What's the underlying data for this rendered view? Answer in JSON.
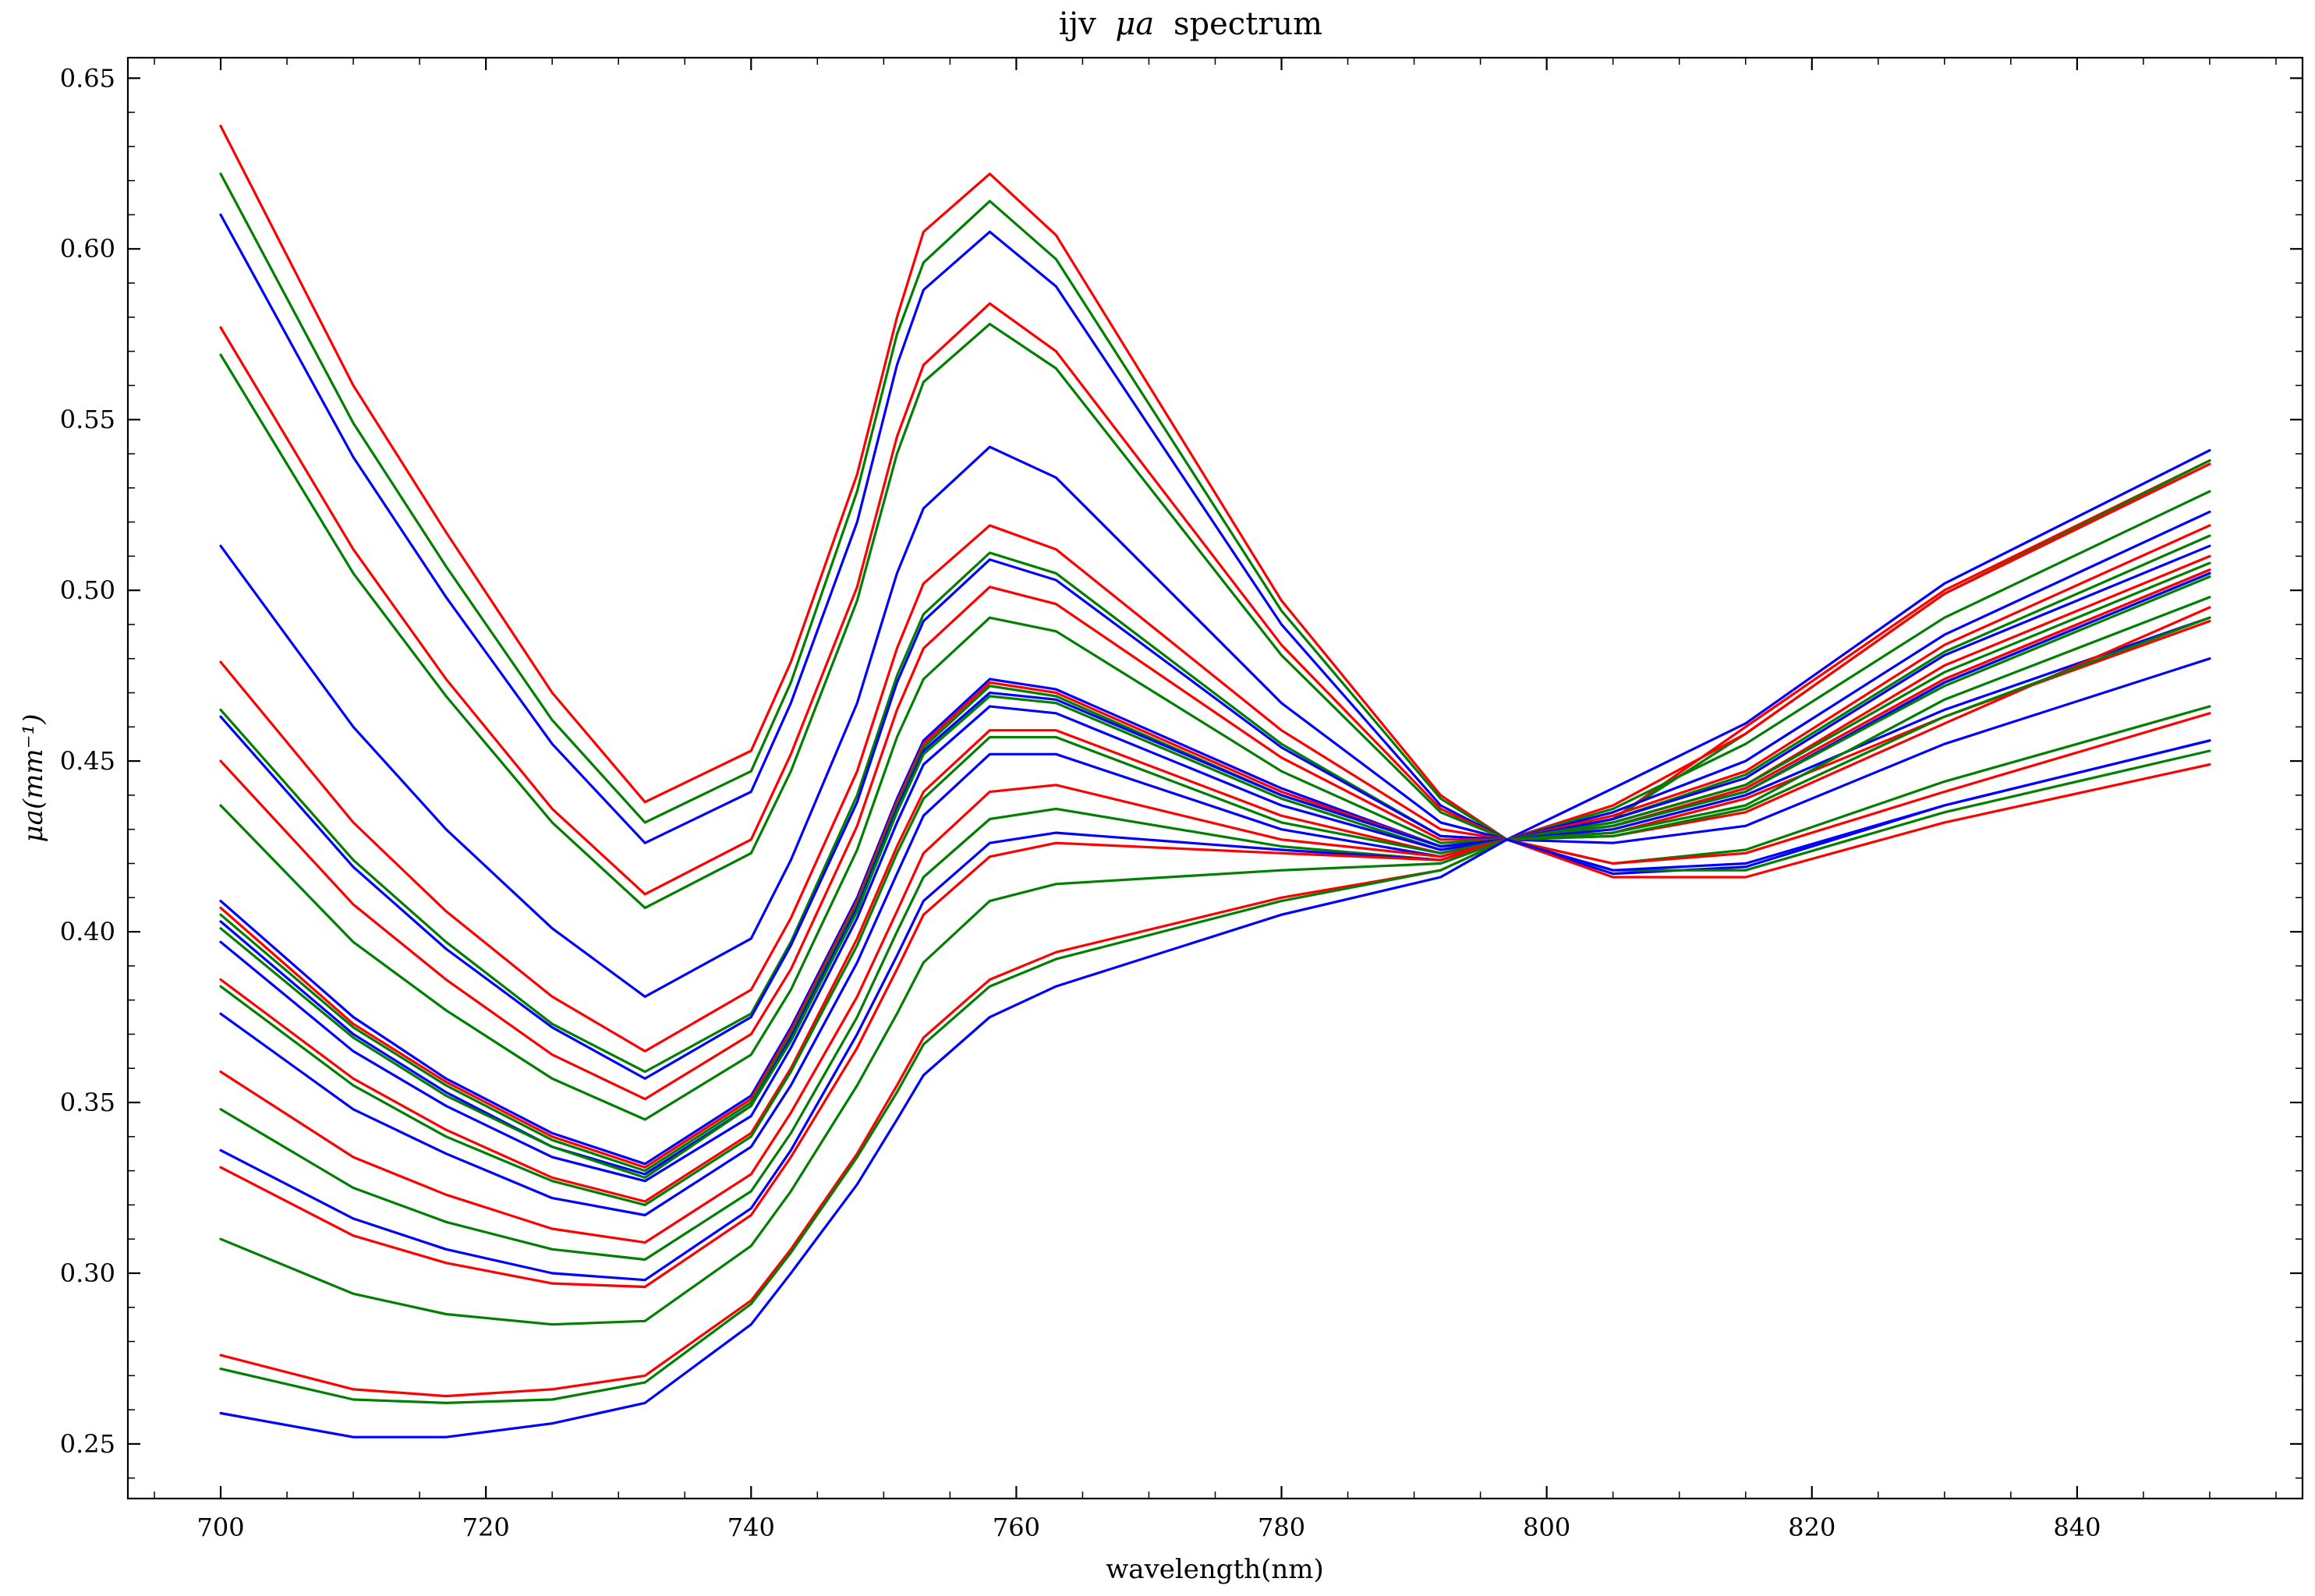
{
  "chart_data": {
    "type": "line",
    "title": "ijv",
    "title_symbol": "μa",
    "title_suffix": "spectrum",
    "xlabel": "wavelength(nm)",
    "ylabel": "μa(mm⁻¹)",
    "xlim": [
      693,
      857
    ],
    "ylim": [
      0.234,
      0.656
    ],
    "x": [
      700,
      710,
      717,
      725,
      732,
      740,
      743,
      748,
      751,
      753,
      758,
      763,
      780,
      792,
      797,
      805,
      815,
      830,
      850
    ],
    "xticks": [
      700,
      720,
      740,
      760,
      780,
      800,
      820,
      840
    ],
    "xtick_labels": [
      "700",
      "720",
      "740",
      "760",
      "780",
      "800",
      "820",
      "840"
    ],
    "yticks": [
      0.25,
      0.3,
      0.35,
      0.4,
      0.45,
      0.5,
      0.55,
      0.6,
      0.65
    ],
    "ytick_labels": [
      "0.25",
      "0.30",
      "0.35",
      "0.40",
      "0.45",
      "0.50",
      "0.55",
      "0.60",
      "0.65"
    ],
    "grid": false,
    "colors": {
      "red": "#ff0000",
      "green": "#007f00",
      "blue": "#0000ff"
    },
    "series": [
      {
        "color": "red",
        "values": [
          0.636,
          0.56,
          0.517,
          0.47,
          0.438,
          0.453,
          0.479,
          0.534,
          0.58,
          0.605,
          0.622,
          0.604,
          0.497,
          0.44,
          0.427,
          0.433,
          0.46,
          0.5,
          0.538
        ]
      },
      {
        "color": "green",
        "values": [
          0.622,
          0.549,
          0.507,
          0.462,
          0.432,
          0.447,
          0.473,
          0.529,
          0.575,
          0.596,
          0.614,
          0.597,
          0.494,
          0.439,
          0.427,
          0.433,
          0.458,
          0.499,
          0.538
        ]
      },
      {
        "color": "blue",
        "values": [
          0.61,
          0.539,
          0.498,
          0.455,
          0.426,
          0.441,
          0.467,
          0.52,
          0.566,
          0.588,
          0.605,
          0.589,
          0.49,
          0.437,
          0.427,
          0.442,
          0.461,
          0.502,
          0.541
        ]
      },
      {
        "color": "red",
        "values": [
          0.577,
          0.512,
          0.474,
          0.436,
          0.411,
          0.427,
          0.452,
          0.501,
          0.545,
          0.566,
          0.584,
          0.57,
          0.484,
          0.436,
          0.427,
          0.437,
          0.458,
          0.499,
          0.537
        ]
      },
      {
        "color": "green",
        "values": [
          0.569,
          0.505,
          0.469,
          0.432,
          0.407,
          0.423,
          0.447,
          0.497,
          0.54,
          0.561,
          0.578,
          0.565,
          0.481,
          0.435,
          0.427,
          0.436,
          0.455,
          0.492,
          0.529
        ]
      },
      {
        "color": "blue",
        "values": [
          0.513,
          0.46,
          0.43,
          0.401,
          0.381,
          0.398,
          0.421,
          0.467,
          0.505,
          0.524,
          0.542,
          0.533,
          0.467,
          0.432,
          0.427,
          0.435,
          0.45,
          0.487,
          0.523
        ]
      },
      {
        "color": "red",
        "values": [
          0.479,
          0.432,
          0.406,
          0.381,
          0.365,
          0.383,
          0.404,
          0.447,
          0.483,
          0.502,
          0.519,
          0.512,
          0.459,
          0.43,
          0.427,
          0.434,
          0.447,
          0.484,
          0.519
        ]
      },
      {
        "color": "green",
        "values": [
          0.465,
          0.421,
          0.397,
          0.373,
          0.359,
          0.376,
          0.397,
          0.44,
          0.475,
          0.493,
          0.511,
          0.505,
          0.455,
          0.428,
          0.427,
          0.433,
          0.446,
          0.482,
          0.516
        ]
      },
      {
        "color": "blue",
        "values": [
          0.463,
          0.419,
          0.395,
          0.372,
          0.357,
          0.375,
          0.396,
          0.438,
          0.473,
          0.491,
          0.509,
          0.503,
          0.454,
          0.428,
          0.427,
          0.433,
          0.445,
          0.481,
          0.513
        ]
      },
      {
        "color": "red",
        "values": [
          0.45,
          0.408,
          0.386,
          0.364,
          0.351,
          0.37,
          0.389,
          0.431,
          0.465,
          0.483,
          0.501,
          0.496,
          0.451,
          0.427,
          0.427,
          0.432,
          0.443,
          0.478,
          0.51
        ]
      },
      {
        "color": "green",
        "values": [
          0.437,
          0.397,
          0.377,
          0.357,
          0.345,
          0.364,
          0.383,
          0.424,
          0.457,
          0.474,
          0.492,
          0.488,
          0.447,
          0.426,
          0.427,
          0.432,
          0.443,
          0.476,
          0.508
        ]
      },
      {
        "color": "blue",
        "values": [
          0.409,
          0.375,
          0.357,
          0.341,
          0.332,
          0.352,
          0.372,
          0.41,
          0.439,
          0.456,
          0.474,
          0.471,
          0.442,
          0.425,
          0.427,
          0.431,
          0.442,
          0.474,
          0.506
        ]
      },
      {
        "color": "red",
        "values": [
          0.407,
          0.373,
          0.356,
          0.34,
          0.331,
          0.351,
          0.371,
          0.409,
          0.438,
          0.455,
          0.473,
          0.47,
          0.441,
          0.425,
          0.427,
          0.431,
          0.442,
          0.474,
          0.506
        ]
      },
      {
        "color": "green",
        "values": [
          0.405,
          0.372,
          0.355,
          0.339,
          0.33,
          0.35,
          0.37,
          0.408,
          0.437,
          0.454,
          0.472,
          0.469,
          0.44,
          0.425,
          0.427,
          0.431,
          0.441,
          0.473,
          0.505
        ]
      },
      {
        "color": "blue",
        "values": [
          0.403,
          0.37,
          0.353,
          0.337,
          0.329,
          0.349,
          0.369,
          0.407,
          0.436,
          0.453,
          0.47,
          0.468,
          0.44,
          0.425,
          0.427,
          0.431,
          0.441,
          0.473,
          0.505
        ]
      },
      {
        "color": "green",
        "values": [
          0.401,
          0.369,
          0.352,
          0.337,
          0.328,
          0.349,
          0.368,
          0.406,
          0.435,
          0.452,
          0.469,
          0.467,
          0.439,
          0.424,
          0.427,
          0.431,
          0.441,
          0.472,
          0.504
        ]
      },
      {
        "color": "blue",
        "values": [
          0.397,
          0.365,
          0.349,
          0.334,
          0.327,
          0.346,
          0.366,
          0.404,
          0.432,
          0.449,
          0.466,
          0.464,
          0.437,
          0.424,
          0.427,
          0.43,
          0.44,
          0.465,
          0.492
        ]
      },
      {
        "color": "red",
        "values": [
          0.386,
          0.357,
          0.342,
          0.328,
          0.321,
          0.341,
          0.36,
          0.398,
          0.425,
          0.441,
          0.459,
          0.459,
          0.434,
          0.423,
          0.427,
          0.429,
          0.439,
          0.463,
          0.491
        ]
      },
      {
        "color": "green",
        "values": [
          0.384,
          0.355,
          0.34,
          0.327,
          0.32,
          0.34,
          0.359,
          0.396,
          0.423,
          0.439,
          0.457,
          0.457,
          0.432,
          0.423,
          0.427,
          0.429,
          0.437,
          0.468,
          0.498
        ]
      },
      {
        "color": "blue",
        "values": [
          0.376,
          0.348,
          0.335,
          0.322,
          0.317,
          0.337,
          0.355,
          0.391,
          0.417,
          0.434,
          0.452,
          0.452,
          0.43,
          0.422,
          0.427,
          0.426,
          0.431,
          0.455,
          0.48
        ]
      },
      {
        "color": "red",
        "values": [
          0.359,
          0.334,
          0.323,
          0.313,
          0.309,
          0.329,
          0.347,
          0.381,
          0.406,
          0.423,
          0.441,
          0.443,
          0.427,
          0.422,
          0.427,
          0.428,
          0.435,
          0.461,
          0.495
        ]
      },
      {
        "color": "green",
        "values": [
          0.348,
          0.325,
          0.315,
          0.307,
          0.304,
          0.324,
          0.341,
          0.375,
          0.4,
          0.416,
          0.433,
          0.436,
          0.425,
          0.421,
          0.427,
          0.428,
          0.436,
          0.463,
          0.492
        ]
      },
      {
        "color": "blue",
        "values": [
          0.336,
          0.316,
          0.307,
          0.3,
          0.298,
          0.319,
          0.336,
          0.37,
          0.393,
          0.409,
          0.426,
          0.429,
          0.424,
          0.421,
          0.427,
          0.417,
          0.419,
          0.437,
          0.456
        ]
      },
      {
        "color": "red",
        "values": [
          0.331,
          0.311,
          0.303,
          0.297,
          0.296,
          0.317,
          0.334,
          0.366,
          0.389,
          0.405,
          0.422,
          0.426,
          0.423,
          0.421,
          0.427,
          0.416,
          0.416,
          0.432,
          0.449
        ]
      },
      {
        "color": "green",
        "values": [
          0.31,
          0.294,
          0.288,
          0.285,
          0.286,
          0.308,
          0.324,
          0.355,
          0.376,
          0.391,
          0.409,
          0.414,
          0.418,
          0.42,
          0.427,
          0.42,
          0.424,
          0.444,
          0.466
        ]
      },
      {
        "color": "red",
        "values": [
          0.276,
          0.266,
          0.264,
          0.266,
          0.27,
          0.292,
          0.307,
          0.335,
          0.355,
          0.369,
          0.386,
          0.394,
          0.41,
          0.418,
          0.427,
          0.42,
          0.423,
          0.441,
          0.464
        ]
      },
      {
        "color": "green",
        "values": [
          0.272,
          0.263,
          0.262,
          0.263,
          0.268,
          0.291,
          0.306,
          0.334,
          0.353,
          0.367,
          0.384,
          0.392,
          0.409,
          0.418,
          0.427,
          0.418,
          0.418,
          0.435,
          0.453
        ]
      },
      {
        "color": "blue",
        "values": [
          0.259,
          0.252,
          0.252,
          0.256,
          0.262,
          0.285,
          0.3,
          0.326,
          0.345,
          0.358,
          0.375,
          0.384,
          0.405,
          0.416,
          0.427,
          0.418,
          0.42,
          0.437,
          0.456
        ]
      }
    ]
  }
}
